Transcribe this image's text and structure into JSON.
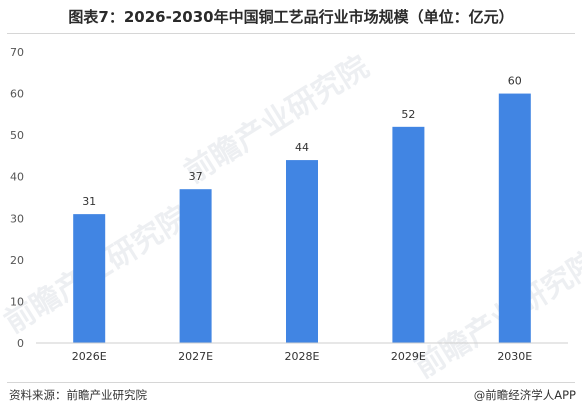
{
  "header": {
    "title": "图表7：2026-2030年中国铜工艺品行业市场规模（单位：亿元）"
  },
  "footer": {
    "source": "资料来源：前瞻产业研究院",
    "credit": "@前瞻经济学人APP"
  },
  "watermark": {
    "text": "前瞻产业研究院"
  },
  "chart_data": {
    "type": "bar",
    "title": "图表7：2026-2030年中国铜工艺品行业市场规模（单位：亿元）",
    "categories": [
      "2026E",
      "2027E",
      "2028E",
      "2029E",
      "2030E"
    ],
    "values": [
      31,
      37,
      44,
      52,
      60
    ],
    "data_labels": [
      "31",
      "37",
      "44",
      "52",
      "60"
    ],
    "yticks": [
      "0",
      "10",
      "20",
      "30",
      "40",
      "50",
      "60",
      "70"
    ],
    "ylim": [
      0,
      70
    ],
    "grid": false,
    "bar_color": "#4185e3"
  }
}
